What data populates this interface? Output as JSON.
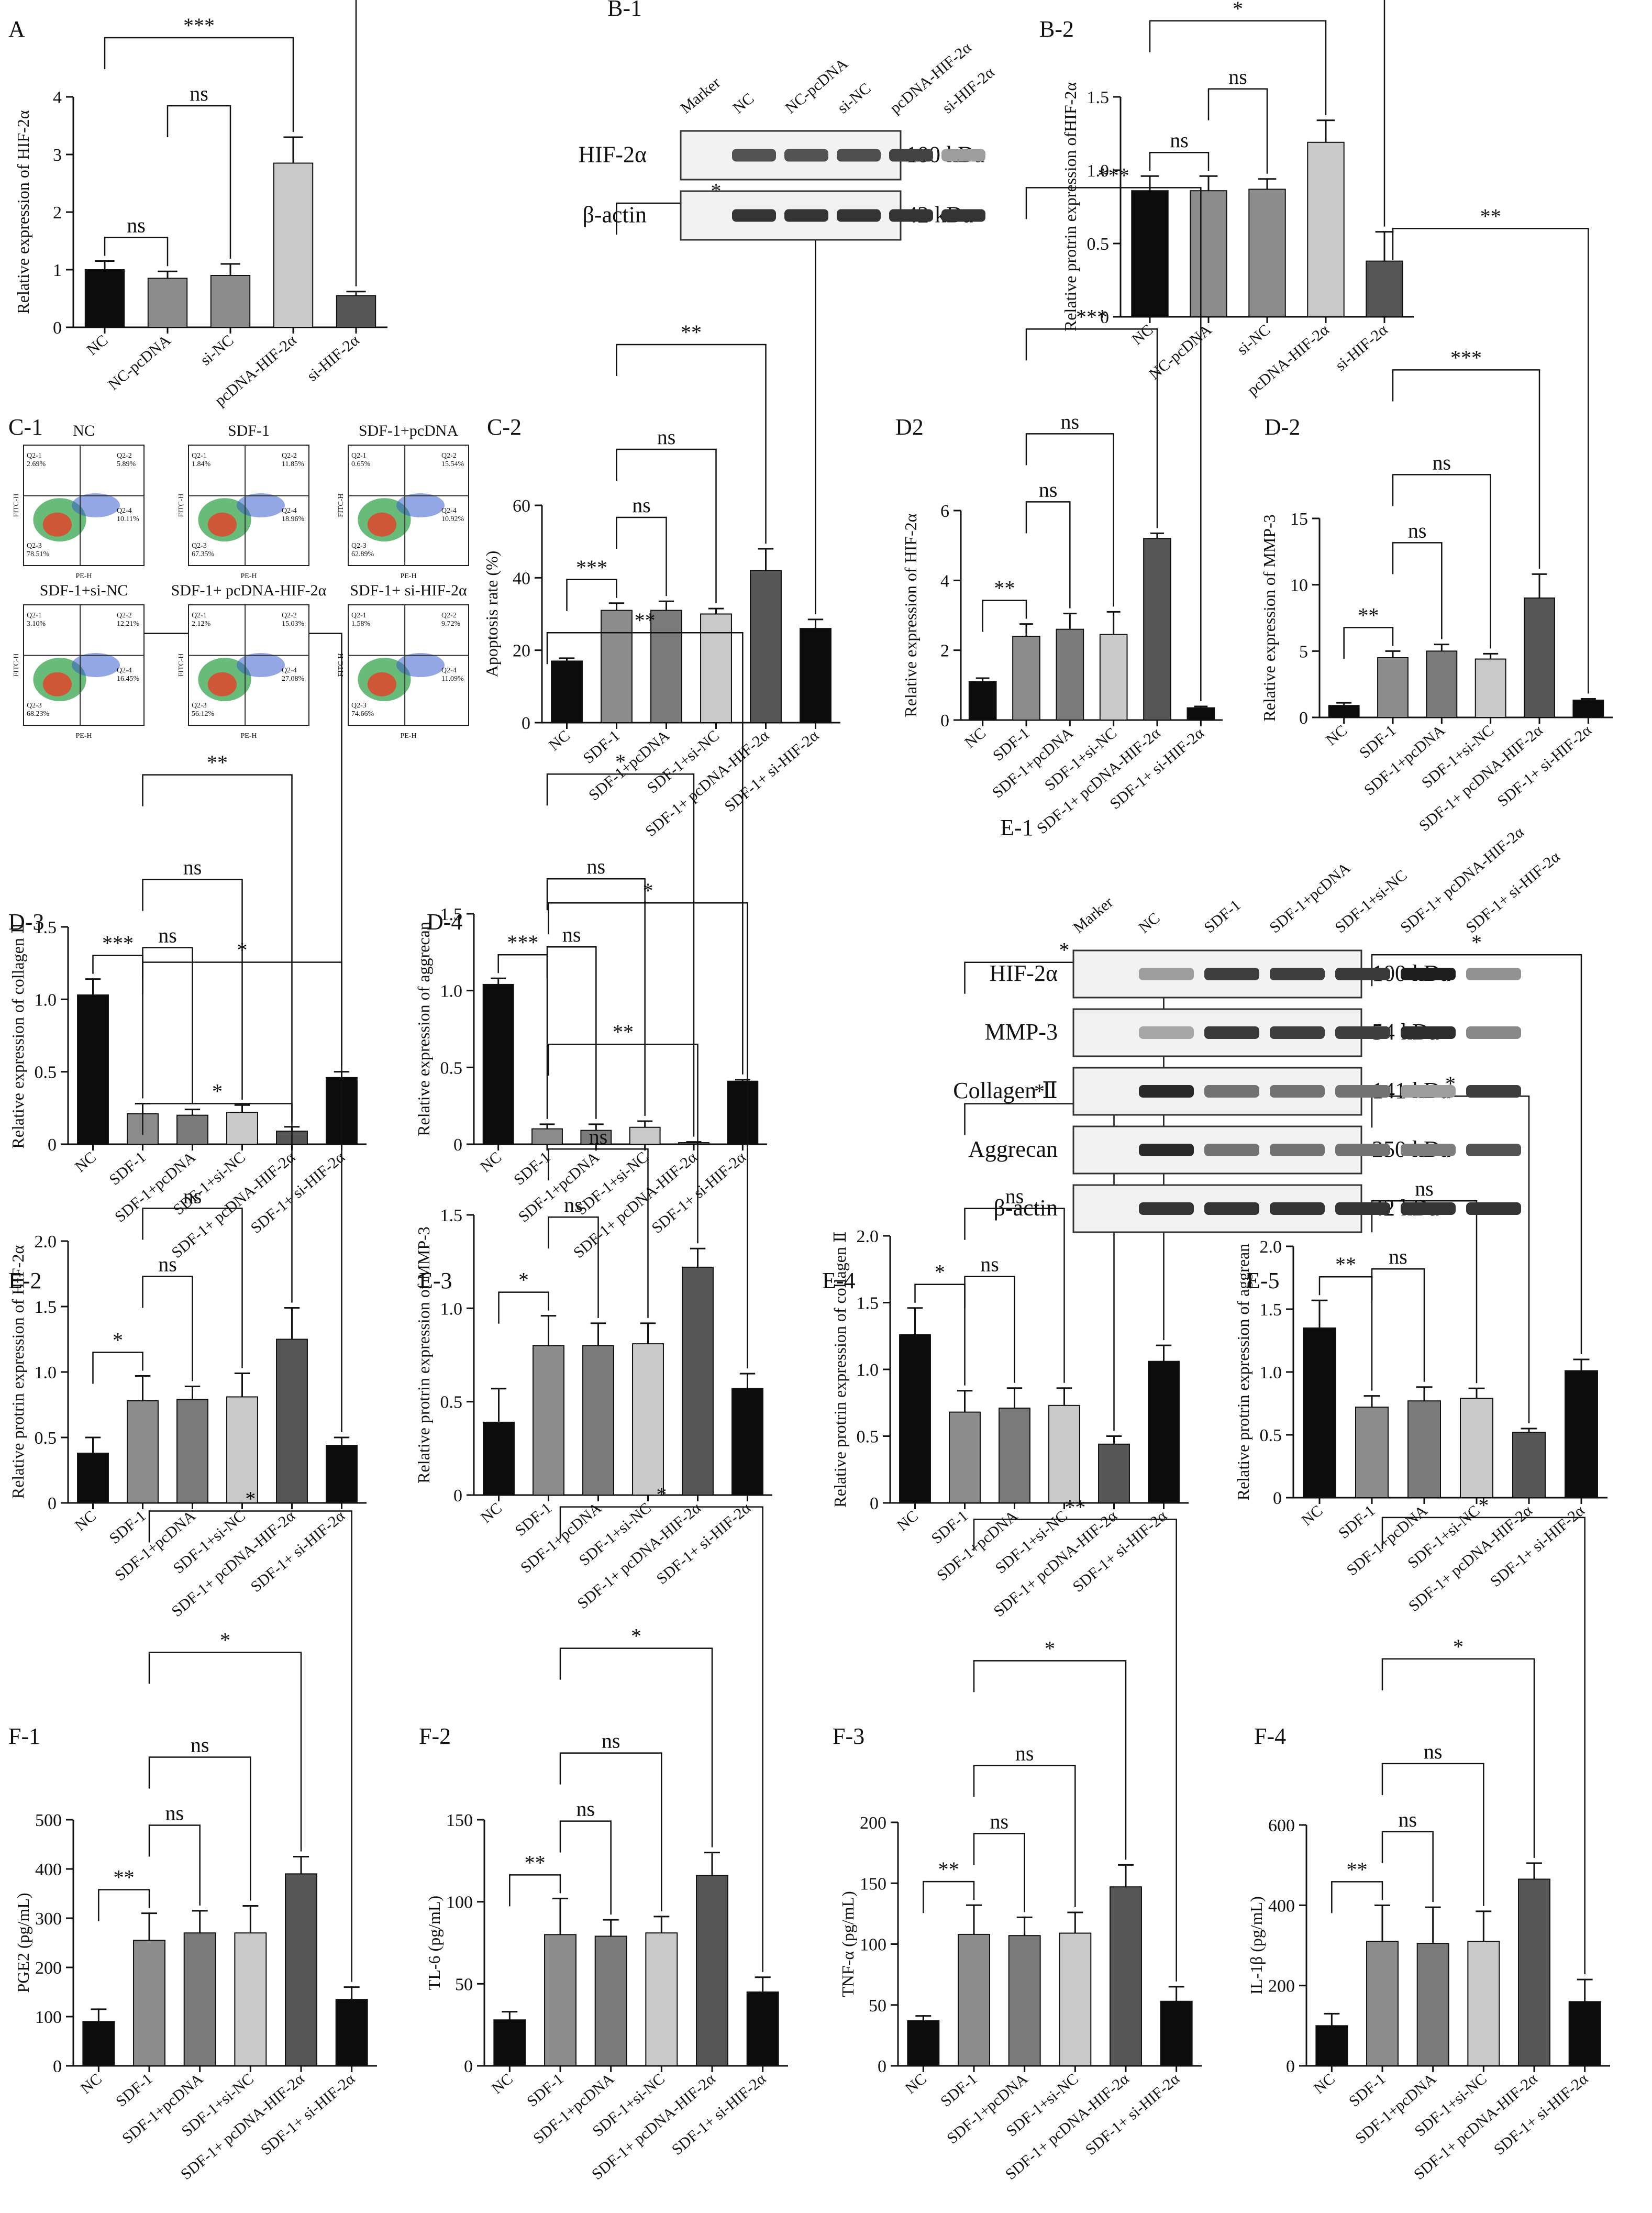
{
  "colors": {
    "NC": "#0c0c0c",
    "grey1": "#8c8c8c",
    "grey2": "#7a7a7a",
    "grey3": "#c9c9c9",
    "dark": "#565656",
    "black": "#0c0c0c"
  },
  "charts": [
    {
      "id": "A",
      "type": "bar",
      "panel": "A",
      "ylabel": "Relative expression of HIF-2α",
      "ylim": [
        0,
        4
      ],
      "yticks": [
        0,
        1,
        2,
        3,
        4
      ],
      "categories": [
        "NC",
        "NC-pcDNA",
        "si-NC",
        "pcDNA-HIF-2α",
        "si-HIF-2α"
      ],
      "values": [
        1.0,
        0.85,
        0.9,
        2.85,
        0.55
      ],
      "errors": [
        0.15,
        0.12,
        0.2,
        0.45,
        0.07
      ],
      "colors": [
        "#0c0c0c",
        "#8c8c8c",
        "#8c8c8c",
        "#c9c9c9",
        "#565656"
      ],
      "sig": [
        [
          "0",
          "1",
          "ns"
        ],
        [
          "1",
          "2",
          "ns"
        ],
        [
          "0",
          "3",
          "***"
        ],
        [
          "0",
          "4",
          "**"
        ]
      ]
    },
    {
      "id": "B2",
      "type": "bar",
      "panel": "B-2",
      "ylabel": "Relative protrin expression ofHIF-2α",
      "ylim": [
        0,
        1.5
      ],
      "yticks": [
        0,
        0.5,
        1.0,
        1.5
      ],
      "categories": [
        "NC",
        "NC-pcDNA",
        "si-NC",
        "pcDNA-HIF-2α",
        "si-HIF-2α"
      ],
      "values": [
        0.86,
        0.86,
        0.87,
        1.19,
        0.38
      ],
      "errors": [
        0.1,
        0.1,
        0.07,
        0.15,
        0.2
      ],
      "colors": [
        "#0c0c0c",
        "#8c8c8c",
        "#8c8c8c",
        "#c9c9c9",
        "#565656"
      ],
      "sig": [
        [
          "0",
          "1",
          "ns"
        ],
        [
          "1",
          "2",
          "ns"
        ],
        [
          "0",
          "3",
          "*"
        ],
        [
          "0",
          "4",
          "*"
        ]
      ]
    },
    {
      "id": "C2",
      "type": "bar",
      "panel": "C-2",
      "ylabel": "Apoptosis rate (%)",
      "ylim": [
        0,
        60
      ],
      "yticks": [
        0,
        20,
        40,
        60
      ],
      "categories": [
        "NC",
        "SDF-1",
        "SDF-1+pcDNA",
        "SDF-1+si-NC",
        "SDF-1+ pcDNA-HIF-2α",
        "SDF-1+ si-HIF-2α"
      ],
      "values": [
        17,
        31,
        31,
        30,
        42,
        26
      ],
      "errors": [
        0.8,
        2,
        2.5,
        1.5,
        6,
        2.5
      ],
      "colors": [
        "#0c0c0c",
        "#8c8c8c",
        "#7a7a7a",
        "#c9c9c9",
        "#565656",
        "#0c0c0c"
      ],
      "sig": [
        [
          "0",
          "1",
          "***"
        ],
        [
          "1",
          "2",
          "ns"
        ],
        [
          "1",
          "3",
          "ns"
        ],
        [
          "1",
          "4",
          "**"
        ],
        [
          "1",
          "5",
          "*"
        ]
      ]
    },
    {
      "id": "D2a",
      "type": "bar",
      "panel": "D2",
      "ylabel": "Relative expression of HIF-2α",
      "ylim": [
        0,
        6
      ],
      "yticks": [
        0,
        2,
        4,
        6
      ],
      "categories": [
        "NC",
        "SDF-1",
        "SDF-1+pcDNA",
        "SDF-1+si-NC",
        "SDF-1+ pcDNA-HIF-2α",
        "SDF-1+ si-HIF-2α"
      ],
      "values": [
        1.1,
        2.4,
        2.6,
        2.45,
        5.2,
        0.35
      ],
      "errors": [
        0.1,
        0.35,
        0.45,
        0.65,
        0.15,
        0.04
      ],
      "colors": [
        "#0c0c0c",
        "#8c8c8c",
        "#7a7a7a",
        "#c9c9c9",
        "#565656",
        "#0c0c0c"
      ],
      "sig": [
        [
          "0",
          "1",
          "**"
        ],
        [
          "1",
          "2",
          "ns"
        ],
        [
          "1",
          "3",
          "ns"
        ],
        [
          "1",
          "4",
          "***"
        ],
        [
          "1",
          "5",
          "***"
        ]
      ]
    },
    {
      "id": "D2b",
      "type": "bar",
      "panel": "D-2",
      "ylabel": "Relative expression of MMP-3",
      "ylim": [
        0,
        15
      ],
      "yticks": [
        0,
        5,
        10,
        15
      ],
      "categories": [
        "NC",
        "SDF-1",
        "SDF-1+pcDNA",
        "SDF-1+si-NC",
        "SDF-1+ pcDNA-HIF-2α",
        "SDF-1+ si-HIF-2α"
      ],
      "values": [
        0.9,
        4.5,
        5.0,
        4.4,
        9.0,
        1.3
      ],
      "errors": [
        0.2,
        0.5,
        0.5,
        0.4,
        1.8,
        0.1
      ],
      "colors": [
        "#0c0c0c",
        "#8c8c8c",
        "#7a7a7a",
        "#c9c9c9",
        "#565656",
        "#0c0c0c"
      ],
      "sig": [
        [
          "0",
          "1",
          "**"
        ],
        [
          "1",
          "2",
          "ns"
        ],
        [
          "1",
          "3",
          "ns"
        ],
        [
          "1",
          "4",
          "***"
        ],
        [
          "1",
          "5",
          "**"
        ]
      ]
    },
    {
      "id": "D3",
      "type": "bar",
      "panel": "D-3",
      "ylabel": "Relative expression of collagen Ⅱ",
      "ylim": [
        0,
        1.5
      ],
      "yticks": [
        0,
        0.5,
        1.0,
        1.5
      ],
      "categories": [
        "NC",
        "SDF-1",
        "SDF-1+pcDNA",
        "SDF-1+si-NC",
        "SDF-1+ pcDNA-HIF-2α",
        "SDF-1+ si-HIF-2α"
      ],
      "values": [
        1.03,
        0.21,
        0.2,
        0.22,
        0.09,
        0.46
      ],
      "errors": [
        0.11,
        0.07,
        0.04,
        0.05,
        0.03,
        0.04
      ],
      "colors": [
        "#0c0c0c",
        "#8c8c8c",
        "#7a7a7a",
        "#c9c9c9",
        "#565656",
        "#0c0c0c"
      ],
      "sig": [
        [
          "0",
          "1",
          "***"
        ],
        [
          "1",
          "2",
          "ns"
        ],
        [
          "1",
          "3",
          "ns"
        ],
        [
          "1",
          "4",
          "**"
        ],
        [
          "1",
          "5",
          "**"
        ]
      ]
    },
    {
      "id": "D4",
      "type": "bar",
      "panel": "D-4",
      "ylabel": "Relative expression of aggrecan",
      "ylim": [
        0,
        1.5
      ],
      "yticks": [
        0,
        0.5,
        1.0,
        1.5
      ],
      "categories": [
        "NC",
        "SDF-1",
        "SDF-1+pcDNA",
        "SDF-1+si-NC",
        "SDF-1+ pcDNA-HIF-2α",
        "SDF-1+ si-HIF-2α"
      ],
      "values": [
        1.04,
        0.1,
        0.09,
        0.11,
        0.01,
        0.41
      ],
      "errors": [
        0.04,
        0.03,
        0.04,
        0.04,
        0.005,
        0.01
      ],
      "colors": [
        "#0c0c0c",
        "#8c8c8c",
        "#7a7a7a",
        "#c9c9c9",
        "#565656",
        "#0c0c0c"
      ],
      "sig": [
        [
          "0",
          "1",
          "***"
        ],
        [
          "1",
          "2",
          "ns"
        ],
        [
          "1",
          "3",
          "ns"
        ],
        [
          "1",
          "4",
          "*"
        ],
        [
          "1",
          "5",
          "**"
        ]
      ]
    },
    {
      "id": "E2",
      "type": "bar",
      "panel": "E-2",
      "ylabel": "Relative protrin expression of HIF-2α",
      "ylim": [
        0,
        2.0
      ],
      "yticks": [
        0,
        0.5,
        1.0,
        1.5,
        2.0
      ],
      "categories": [
        "NC",
        "SDF-1",
        "SDF-1+pcDNA",
        "SDF-1+si-NC",
        "SDF-1+ pcDNA-HIF-2α",
        "SDF-1+ si-HIF-2α"
      ],
      "values": [
        0.38,
        0.78,
        0.79,
        0.81,
        1.25,
        0.44
      ],
      "errors": [
        0.12,
        0.19,
        0.1,
        0.18,
        0.24,
        0.06
      ],
      "colors": [
        "#0c0c0c",
        "#8c8c8c",
        "#7a7a7a",
        "#c9c9c9",
        "#565656",
        "#0c0c0c"
      ],
      "sig": [
        [
          "0",
          "1",
          "*"
        ],
        [
          "1",
          "2",
          "ns"
        ],
        [
          "1",
          "3",
          "ns"
        ],
        [
          "1",
          "4",
          "*"
        ],
        [
          "1",
          "5",
          "*"
        ]
      ]
    },
    {
      "id": "E3",
      "type": "bar",
      "panel": "E-3",
      "ylabel": "Relative protrin expression of MMP-3",
      "ylim": [
        0,
        1.5
      ],
      "yticks": [
        0,
        0.5,
        1.0,
        1.5
      ],
      "categories": [
        "NC",
        "SDF-1",
        "SDF-1+pcDNA",
        "SDF-1+si-NC",
        "SDF-1+ pcDNA-HIF-2α",
        "SDF-1+ si-HIF-2α"
      ],
      "values": [
        0.39,
        0.8,
        0.8,
        0.81,
        1.22,
        0.57
      ],
      "errors": [
        0.18,
        0.16,
        0.12,
        0.11,
        0.1,
        0.08
      ],
      "colors": [
        "#0c0c0c",
        "#8c8c8c",
        "#7a7a7a",
        "#c9c9c9",
        "#565656",
        "#0c0c0c"
      ],
      "sig": [
        [
          "0",
          "1",
          "*"
        ],
        [
          "1",
          "2",
          "ns"
        ],
        [
          "1",
          "3",
          "ns"
        ],
        [
          "1",
          "4",
          "**"
        ],
        [
          "1",
          "5",
          "*"
        ]
      ]
    },
    {
      "id": "E4",
      "type": "bar",
      "panel": "E-4",
      "ylabel": "Relative protrin expression of collagen Ⅱ",
      "ylim": [
        0,
        2.0
      ],
      "yticks": [
        0,
        0.5,
        1.0,
        1.5,
        2.0
      ],
      "categories": [
        "NC",
        "SDF-1",
        "SDF-1+pcDNA",
        "SDF-1+si-NC",
        "SDF-1+ pcDNA-HIF-2α",
        "SDF-1+ si-HIF-2α"
      ],
      "values": [
        1.26,
        0.68,
        0.71,
        0.73,
        0.44,
        1.06
      ],
      "errors": [
        0.2,
        0.16,
        0.15,
        0.13,
        0.06,
        0.12
      ],
      "colors": [
        "#0c0c0c",
        "#8c8c8c",
        "#7a7a7a",
        "#c9c9c9",
        "#565656",
        "#0c0c0c"
      ],
      "sig": [
        [
          "0",
          "1",
          "*"
        ],
        [
          "1",
          "2",
          "ns"
        ],
        [
          "1",
          "3",
          "ns"
        ],
        [
          "1",
          "4",
          "*"
        ],
        [
          "1",
          "5",
          "*"
        ]
      ]
    },
    {
      "id": "E5",
      "type": "bar",
      "panel": "E-5",
      "ylabel": "Relative protrin expression of aggrean",
      "ylim": [
        0,
        2.0
      ],
      "yticks": [
        0,
        0.5,
        1.0,
        1.5,
        2.0
      ],
      "categories": [
        "NC",
        "SDF-1",
        "SDF-1+pcDNA",
        "SDF-1+si-NC",
        "SDF-1+ pcDNA-HIF-2α",
        "SDF-1+ si-HIF-2α"
      ],
      "values": [
        1.35,
        0.72,
        0.77,
        0.79,
        0.52,
        1.01
      ],
      "errors": [
        0.22,
        0.09,
        0.11,
        0.08,
        0.03,
        0.09
      ],
      "colors": [
        "#0c0c0c",
        "#8c8c8c",
        "#7a7a7a",
        "#c9c9c9",
        "#565656",
        "#0c0c0c"
      ],
      "sig": [
        [
          "0",
          "1",
          "**"
        ],
        [
          "1",
          "2",
          "ns"
        ],
        [
          "1",
          "3",
          "ns"
        ],
        [
          "1",
          "4",
          "*"
        ],
        [
          "1",
          "5",
          "*"
        ]
      ]
    },
    {
      "id": "F1",
      "type": "bar",
      "panel": "F-1",
      "ylabel": "PGE2 (pg/mL)",
      "ylim": [
        0,
        500
      ],
      "yticks": [
        0,
        100,
        200,
        300,
        400,
        500
      ],
      "categories": [
        "NC",
        "SDF-1",
        "SDF-1+pcDNA",
        "SDF-1+si-NC",
        "SDF-1+ pcDNA-HIF-2α",
        "SDF-1+ si-HIF-2α"
      ],
      "values": [
        90,
        255,
        270,
        270,
        390,
        135
      ],
      "errors": [
        25,
        55,
        45,
        55,
        35,
        25
      ],
      "colors": [
        "#0c0c0c",
        "#8c8c8c",
        "#7a7a7a",
        "#c9c9c9",
        "#565656",
        "#0c0c0c"
      ],
      "sig": [
        [
          "0",
          "1",
          "**"
        ],
        [
          "1",
          "2",
          "ns"
        ],
        [
          "1",
          "3",
          "ns"
        ],
        [
          "1",
          "4",
          "*"
        ],
        [
          "1",
          "5",
          "*"
        ]
      ]
    },
    {
      "id": "F2",
      "type": "bar",
      "panel": "F-2",
      "ylabel": "TL-6 (pg/mL)",
      "ylim": [
        0,
        150
      ],
      "yticks": [
        0,
        50,
        100,
        150
      ],
      "categories": [
        "NC",
        "SDF-1",
        "SDF-1+pcDNA",
        "SDF-1+si-NC",
        "SDF-1+ pcDNA-HIF-2α",
        "SDF-1+ si-HIF-2α"
      ],
      "values": [
        28,
        80,
        79,
        81,
        116,
        45
      ],
      "errors": [
        5,
        22,
        10,
        10,
        14,
        9
      ],
      "colors": [
        "#0c0c0c",
        "#8c8c8c",
        "#7a7a7a",
        "#c9c9c9",
        "#565656",
        "#0c0c0c"
      ],
      "sig": [
        [
          "0",
          "1",
          "**"
        ],
        [
          "1",
          "2",
          "ns"
        ],
        [
          "1",
          "3",
          "ns"
        ],
        [
          "1",
          "4",
          "*"
        ],
        [
          "1",
          "5",
          "*"
        ]
      ]
    },
    {
      "id": "F3",
      "type": "bar",
      "panel": "F-3",
      "ylabel": "TNF-α (pg/mL)",
      "ylim": [
        0,
        200
      ],
      "yticks": [
        0,
        50,
        100,
        150,
        200
      ],
      "categories": [
        "NC",
        "SDF-1",
        "SDF-1+pcDNA",
        "SDF-1+si-NC",
        "SDF-1+ pcDNA-HIF-2α",
        "SDF-1+ si-HIF-2α"
      ],
      "values": [
        37,
        108,
        107,
        109,
        147,
        53
      ],
      "errors": [
        4,
        24,
        15,
        17,
        18,
        12
      ],
      "colors": [
        "#0c0c0c",
        "#8c8c8c",
        "#7a7a7a",
        "#c9c9c9",
        "#565656",
        "#0c0c0c"
      ],
      "sig": [
        [
          "0",
          "1",
          "**"
        ],
        [
          "1",
          "2",
          "ns"
        ],
        [
          "1",
          "3",
          "ns"
        ],
        [
          "1",
          "4",
          "*"
        ],
        [
          "1",
          "5",
          "**"
        ]
      ]
    },
    {
      "id": "F4",
      "type": "bar",
      "panel": "F-4",
      "ylabel": "IL-1β (pg/mL)",
      "ylim": [
        0,
        600
      ],
      "yticks": [
        0,
        200,
        400,
        600
      ],
      "categories": [
        "NC",
        "SDF-1",
        "SDF-1+pcDNA",
        "SDF-1+si-NC",
        "SDF-1+ pcDNA-HIF-2α",
        "SDF-1+ si-HIF-2α"
      ],
      "values": [
        100,
        310,
        305,
        310,
        465,
        160
      ],
      "errors": [
        30,
        90,
        90,
        75,
        40,
        55
      ],
      "colors": [
        "#0c0c0c",
        "#8c8c8c",
        "#7a7a7a",
        "#c9c9c9",
        "#565656",
        "#0c0c0c"
      ],
      "sig": [
        [
          "0",
          "1",
          "**"
        ],
        [
          "1",
          "2",
          "ns"
        ],
        [
          "1",
          "3",
          "ns"
        ],
        [
          "1",
          "4",
          "*"
        ],
        [
          "1",
          "5",
          "*"
        ]
      ]
    }
  ],
  "blotB1": {
    "panel": "B-1",
    "lanes": [
      "Marker",
      "NC",
      "NC-pcDNA",
      "si-NC",
      "pcDNA-HIF-2α",
      "si-HIF-2α"
    ],
    "rows": [
      {
        "label": "HIF-2α",
        "kda": "100 kDa",
        "intensity": [
          0.7,
          0.7,
          0.72,
          0.78,
          0.35
        ]
      },
      {
        "label": "β-actin",
        "kda": "42 kDa",
        "intensity": [
          0.85,
          0.85,
          0.85,
          0.85,
          0.85
        ]
      }
    ]
  },
  "blotE1": {
    "panel": "E-1",
    "lanes": [
      "Marker",
      "NC",
      "SDF-1",
      "SDF-1+pcDNA",
      "SDF-1+si-NC",
      "SDF-1+ pcDNA-HIF-2α",
      "SDF-1+ si-HIF-2α"
    ],
    "rows": [
      {
        "label": "HIF-2α",
        "kda": "100 kDa",
        "intensity": [
          0.35,
          0.8,
          0.8,
          0.82,
          0.95,
          0.4
        ]
      },
      {
        "label": "MMP-3",
        "kda": "54 kDa",
        "intensity": [
          0.3,
          0.82,
          0.8,
          0.8,
          0.88,
          0.45
        ]
      },
      {
        "label": "Collagen Ⅱ",
        "kda": "141 kDa",
        "intensity": [
          0.9,
          0.55,
          0.55,
          0.55,
          0.35,
          0.8
        ]
      },
      {
        "label": "Aggrecan",
        "kda": "250 kDa",
        "intensity": [
          0.9,
          0.55,
          0.55,
          0.55,
          0.5,
          0.7
        ]
      },
      {
        "label": "β-actin",
        "kda": "42 kDa",
        "intensity": [
          0.85,
          0.85,
          0.85,
          0.85,
          0.85,
          0.85
        ]
      }
    ]
  },
  "flowC1": {
    "panel": "C-1",
    "plots": [
      {
        "title": "NC",
        "q": [
          "Q2-1",
          "Q2-2",
          "Q2-3",
          "Q2-4"
        ],
        "pct": [
          "2.69%",
          "5.89%",
          "78.51%",
          "10.11%"
        ]
      },
      {
        "title": "SDF-1",
        "q": [
          "Q2-1",
          "Q2-2",
          "Q2-3",
          "Q2-4"
        ],
        "pct": [
          "1.84%",
          "11.85%",
          "67.35%",
          "18.96%"
        ]
      },
      {
        "title": "SDF-1+pcDNA",
        "q": [
          "Q2-1",
          "Q2-2",
          "Q2-3",
          "Q2-4"
        ],
        "pct": [
          "0.65%",
          "15.54%",
          "62.89%",
          "10.92%"
        ]
      },
      {
        "title": "SDF-1+si-NC",
        "q": [
          "Q2-1",
          "Q2-2",
          "Q2-3",
          "Q2-4"
        ],
        "pct": [
          "3.10%",
          "12.21%",
          "68.23%",
          "16.45%"
        ]
      },
      {
        "title": "SDF-1+ pcDNA-HIF-2α",
        "q": [
          "Q2-1",
          "Q2-2",
          "Q2-3",
          "Q2-4"
        ],
        "pct": [
          "2.12%",
          "15.03%",
          "56.12%",
          "27.08%"
        ]
      },
      {
        "title": "SDF-1+ si-HIF-2α",
        "q": [
          "Q2-1",
          "Q2-2",
          "Q2-3",
          "Q2-4"
        ],
        "pct": [
          "1.58%",
          "9.72%",
          "74.66%",
          "11.09%"
        ]
      }
    ],
    "xaxis": "PE-H",
    "yaxis": "FITC-H"
  }
}
